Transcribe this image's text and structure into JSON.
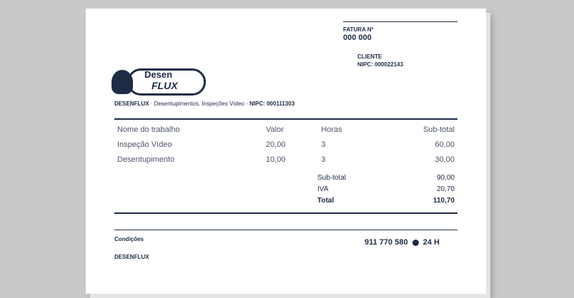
{
  "company": {
    "logo_line1": "Desen",
    "logo_line2": "FLUX",
    "name": "DESENFLUX",
    "address": "Desentupimentos, Inspeções Vídeo",
    "nif": "NIPC: 000111303"
  },
  "invoice": {
    "label": "FATURA Nº",
    "number": "000 000"
  },
  "client": {
    "label": "CLIENTE",
    "nif": "NIPC: 000022143"
  },
  "table": {
    "headers": [
      "Nome do trabalho",
      "Valor",
      "Horas",
      "Sub-total"
    ],
    "rows": [
      [
        "Inspeção Vídeo",
        "20,00",
        "3",
        "60,00"
      ],
      [
        "Desentupimento",
        "10,00",
        "3",
        "30,00"
      ]
    ]
  },
  "totals": {
    "subtotal_label": "Sub-total",
    "subtotal": "90,00",
    "vat_label": "IVA",
    "vat": "20,70",
    "total_label": "Total",
    "total": "110,70"
  },
  "footer": {
    "conditions_label": "Condições",
    "company": "DESENFLUX",
    "phone": "911 770 580",
    "hours": "24 H"
  },
  "colors": {
    "ink": "#1d2b45",
    "background": "#c9c9c9"
  }
}
